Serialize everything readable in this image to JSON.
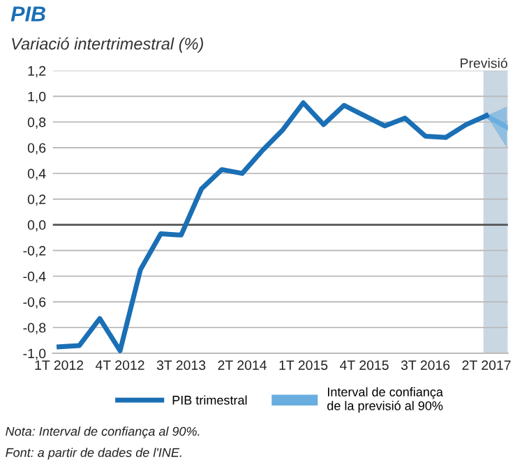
{
  "chart_data": {
    "type": "line",
    "title": "PIB",
    "subtitle": "Variació intertrimestral (%)",
    "categories": [
      "1T 2012",
      null,
      null,
      "4T 2012",
      null,
      null,
      "3T 2013",
      null,
      null,
      "2T 2014",
      null,
      null,
      "1T 2015",
      null,
      null,
      "4T 2015",
      null,
      null,
      "3T 2016",
      null,
      null,
      "2T 2017",
      null
    ],
    "series": [
      {
        "name": "PIB trimestral",
        "color": "#1a6fb5",
        "values": [
          -0.95,
          -0.94,
          -0.73,
          -0.98,
          -0.35,
          -0.07,
          -0.08,
          0.28,
          0.43,
          0.4,
          0.58,
          0.74,
          0.95,
          0.78,
          0.93,
          0.85,
          0.77,
          0.83,
          0.69,
          0.68,
          0.78,
          0.85,
          null
        ]
      },
      {
        "name": "Interval de confiança\nde la previsió al 90%",
        "color": "#6aaee0",
        "values": [
          null,
          null,
          null,
          null,
          null,
          null,
          null,
          null,
          null,
          null,
          null,
          null,
          null,
          null,
          null,
          null,
          null,
          null,
          null,
          null,
          null,
          0.85,
          0.76
        ],
        "lower": [
          null,
          null,
          null,
          null,
          null,
          null,
          null,
          null,
          null,
          null,
          null,
          null,
          null,
          null,
          null,
          null,
          null,
          null,
          null,
          null,
          null,
          0.85,
          0.6
        ],
        "upper": [
          null,
          null,
          null,
          null,
          null,
          null,
          null,
          null,
          null,
          null,
          null,
          null,
          null,
          null,
          null,
          null,
          null,
          null,
          null,
          null,
          null,
          0.85,
          0.92
        ]
      }
    ],
    "ylim": [
      -1.0,
      1.2
    ],
    "yticks": [
      {
        "value": -1.0,
        "label": "-1,0"
      },
      {
        "value": -0.8,
        "label": "-0,8"
      },
      {
        "value": -0.6,
        "label": "-0,6"
      },
      {
        "value": -0.4,
        "label": "-0,4"
      },
      {
        "value": -0.2,
        "label": "-0,2"
      },
      {
        "value": 0.0,
        "label": "0,0"
      },
      {
        "value": 0.2,
        "label": "0,2"
      },
      {
        "value": 0.4,
        "label": "0,4"
      },
      {
        "value": 0.6,
        "label": "0,6"
      },
      {
        "value": 0.8,
        "label": "0,8"
      },
      {
        "value": 1.0,
        "label": "1,0"
      },
      {
        "value": 1.2,
        "label": "1,2"
      }
    ],
    "grid": "y",
    "legend": "bottom",
    "marker": "none",
    "line_style": "solid",
    "ref_lines": [
      {
        "axis": "y",
        "value": 0,
        "color": "#555555"
      }
    ],
    "annotations": [
      "Previsió",
      "Nota: Interval de confiança al 90%.",
      "Font: a partir de dades de l'INE."
    ]
  }
}
